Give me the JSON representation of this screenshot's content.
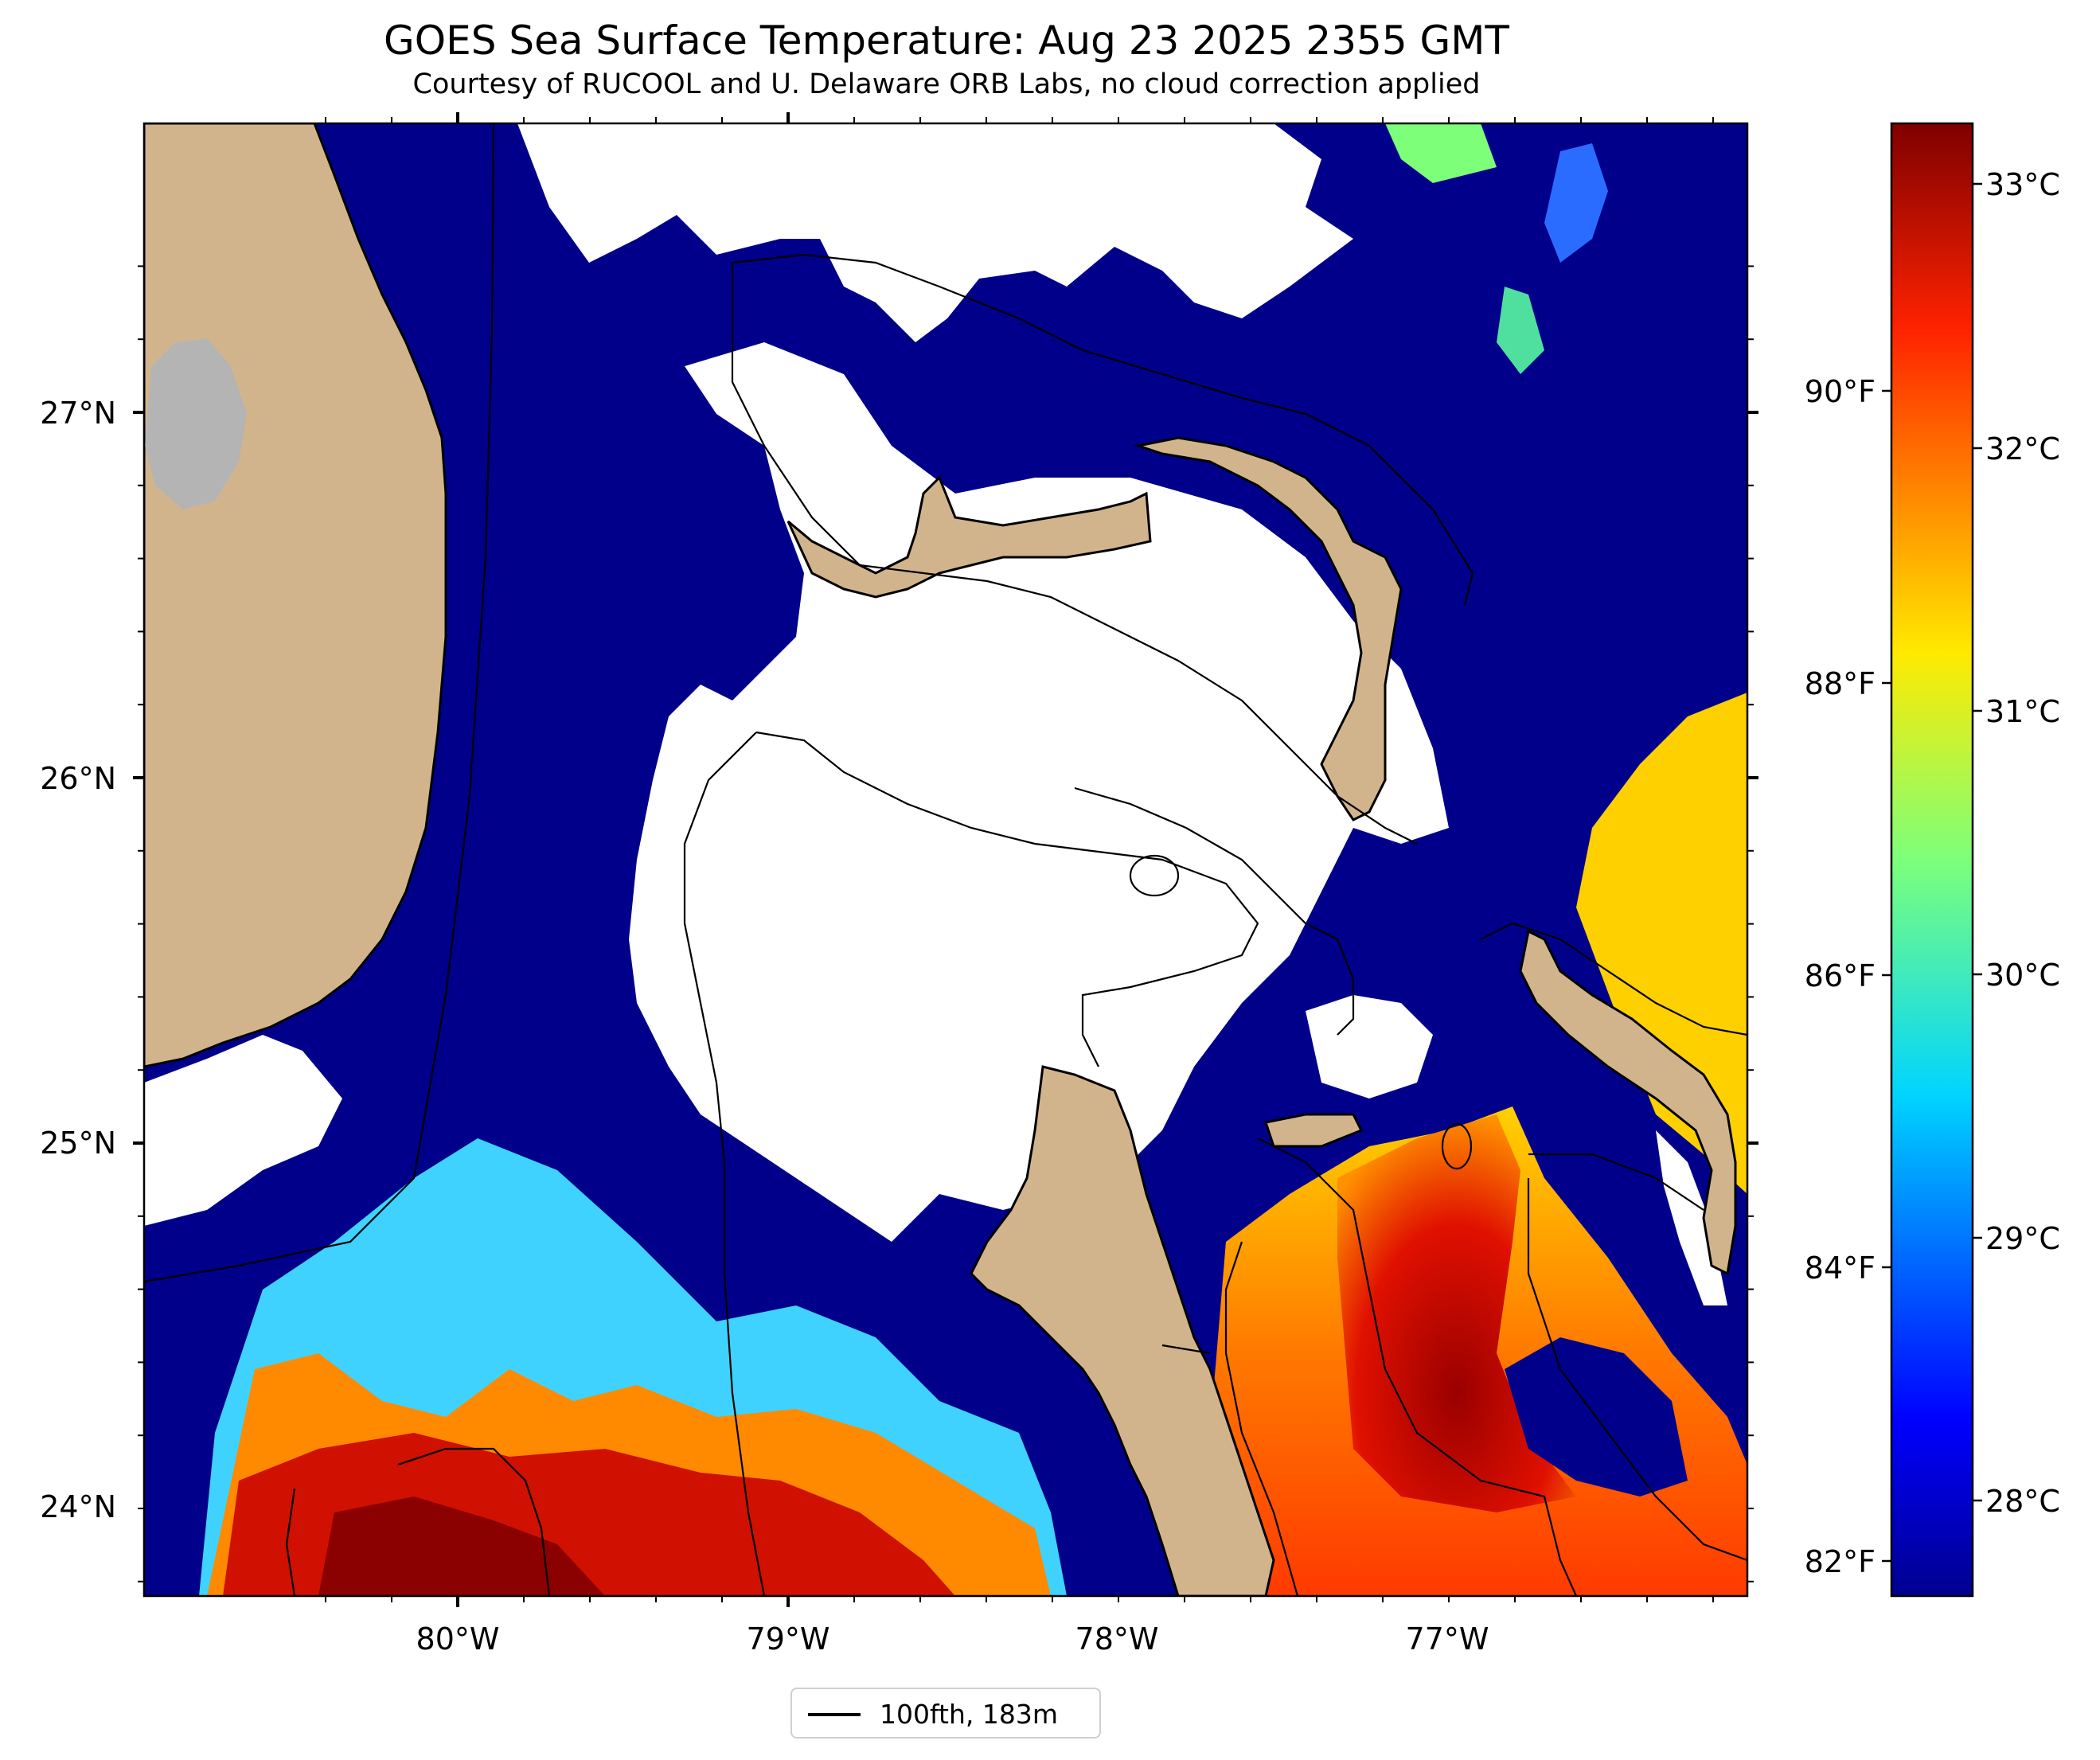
{
  "title": "GOES Sea Surface Temperature: Aug 23 2025 2355 GMT",
  "subtitle": "Courtesy of RUCOOL and U. Delaware ORB Labs, no cloud correction applied",
  "axes": {
    "lat_ticks": [
      "27°N",
      "26°N",
      "25°N",
      "24°N"
    ],
    "lon_ticks": [
      "80°W",
      "79°W",
      "78°W",
      "77°W"
    ]
  },
  "colorbar": {
    "celsius_ticks": [
      "33°C",
      "32°C",
      "31°C",
      "30°C",
      "29°C",
      "28°C"
    ],
    "fahrenheit_ticks": [
      "90°F",
      "88°F",
      "86°F",
      "84°F",
      "82°F"
    ],
    "colormap": "jet"
  },
  "legend": {
    "label": "100fth, 183m"
  },
  "colors": {
    "land": "#d2b48c",
    "lake": "#b4b4b4",
    "cloud": "#ffffff",
    "cold_water": "#00008b"
  }
}
